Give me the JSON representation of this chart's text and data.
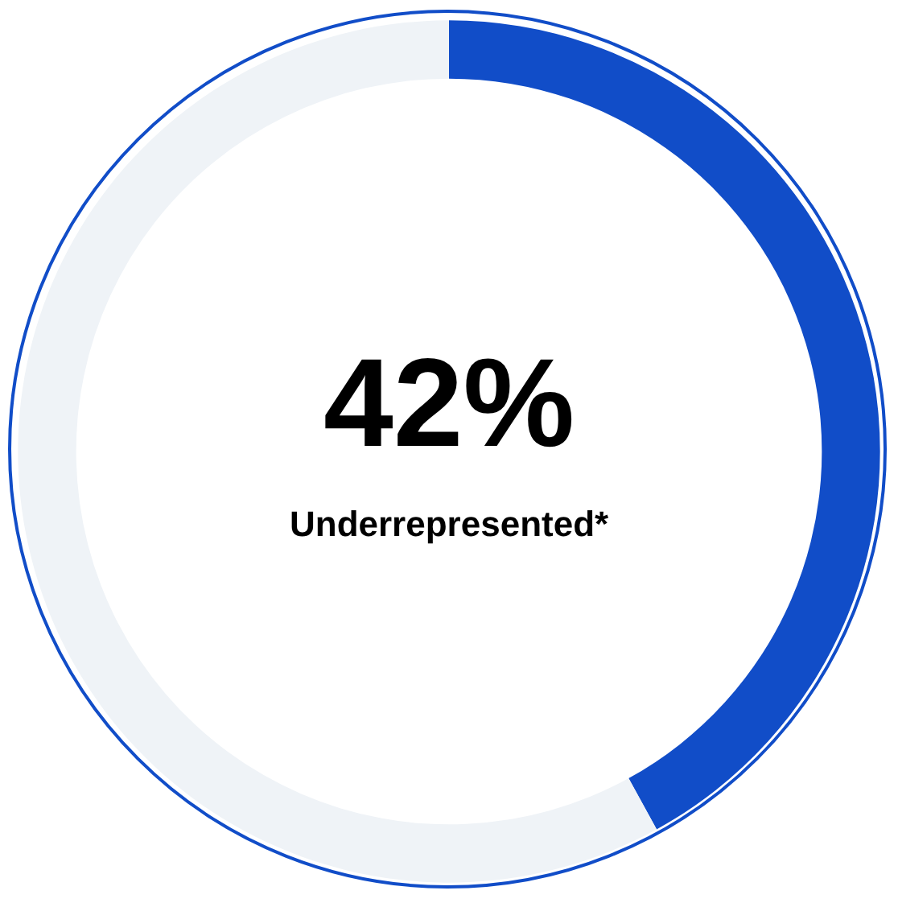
{
  "chart_data": {
    "type": "donut",
    "categories": [
      "Underrepresented*",
      null
    ],
    "values": [
      42,
      58
    ],
    "colors": [
      "#114dc8",
      "#eff3f7"
    ],
    "value_labels": [
      "42%",
      null
    ]
  }
}
